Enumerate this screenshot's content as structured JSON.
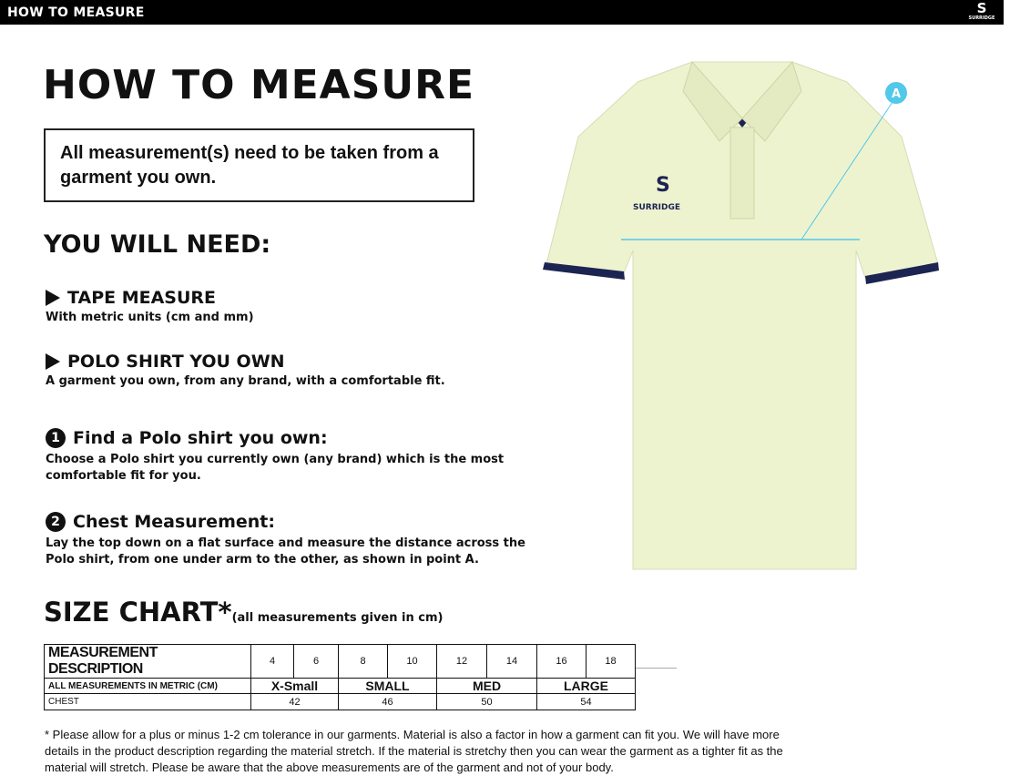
{
  "header": {
    "title": "HOW TO MEASURE",
    "logo_text": "SURRIDGE"
  },
  "main": {
    "title": "HOW TO MEASURE",
    "notice": "All measurement(s) need to be taken from a garment you own.",
    "need_title": "YOU WILL NEED:",
    "needs": [
      {
        "icon": "play-triangle-icon",
        "title": "TAPE MEASURE",
        "desc": "With metric units (cm and mm)"
      },
      {
        "icon": "play-triangle-icon",
        "title": "POLO SHIRT YOU OWN",
        "desc": "A garment you own, from any brand, with a comfortable fit."
      }
    ],
    "steps": [
      {
        "num": "1",
        "title": "Find a Polo shirt you own:",
        "desc": "Choose a Polo shirt you currently own (any brand) which is the most comfortable fit for you."
      },
      {
        "num": "2",
        "title": "Chest Measurement:",
        "desc": "Lay the top down on a flat surface and measure the distance across the Polo shirt, from one under arm to the other, as shown in point A."
      }
    ],
    "point_label": "A",
    "colors": {
      "shirt": "#eef3cf",
      "trim": "#1c2452",
      "measure_line": "#52c8ea"
    }
  },
  "size_chart": {
    "title": "SIZE CHART*",
    "subtitle": "(all measurements given in cm)",
    "row1_label": "MEASUREMENT DESCRIPTION",
    "sizes": [
      "4",
      "6",
      "8",
      "10",
      "12",
      "14",
      "16",
      "18"
    ],
    "row2_label": "ALL MEASUREMENTS IN METRIC (CM)",
    "groups": [
      "X-Small",
      "SMALL",
      "MED",
      "LARGE"
    ],
    "row3_label": "CHEST",
    "chest": [
      "42",
      "46",
      "50",
      "54"
    ]
  },
  "footnote": "* Please allow for a plus or minus 1-2 cm tolerance in our garments. Material is also a factor in how a garment can fit you. We will have more details in the product description regarding the material stretch.  If the material is stretchy then you can wear the garment as a tighter fit as the material will stretch.  Please be aware that the above measurements are of the garment and not of your body."
}
